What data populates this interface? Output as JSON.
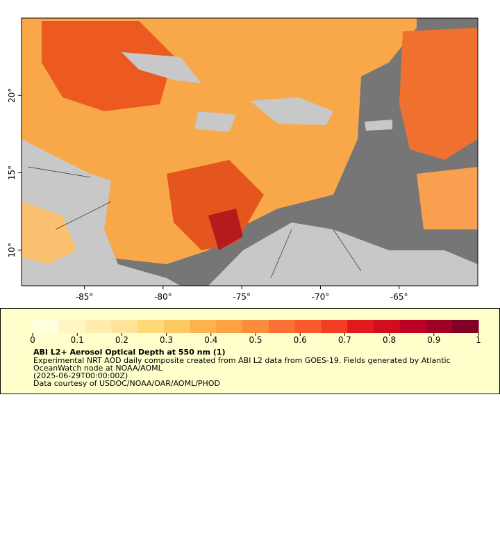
{
  "map": {
    "xlim": [
      -89,
      -60
    ],
    "ylim": [
      7.7,
      25
    ],
    "xticks": [
      {
        "value": -85,
        "label": "-85°"
      },
      {
        "value": -80,
        "label": "-80°"
      },
      {
        "value": -75,
        "label": "-75°"
      },
      {
        "value": -70,
        "label": "-70°"
      },
      {
        "value": -65,
        "label": "-65°"
      }
    ],
    "yticks": [
      {
        "value": 10,
        "label": "10°"
      },
      {
        "value": 15,
        "label": "15°"
      },
      {
        "value": 20,
        "label": "20°"
      }
    ]
  },
  "legend": {
    "title": "ABI L2+ Aerosol Optical Depth at 550 nm (1)",
    "lines": [
      "Experimental NRT AOD daily composite created from ABI L2 data from GOES-19. Fields generated by Atlantic",
      "OceanWatch node at NOAA/AOML",
      "(2025-06-29T00:00:00Z)",
      "Data courtesy of USDOC/NOAA/OAR/AOML/PHOD"
    ],
    "colorbar": {
      "lim": [
        0,
        1
      ],
      "ticks": [
        0,
        0.1,
        0.2,
        0.3,
        0.4,
        0.5,
        0.6,
        0.7,
        0.8,
        0.9,
        1
      ],
      "colors": [
        "#ffffe0",
        "#fff6c4",
        "#ffedab",
        "#fee39a",
        "#fed976",
        "#fec862",
        "#feb24c",
        "#fea044",
        "#fd8d3c",
        "#fc7234",
        "#fc5a2c",
        "#f43d25",
        "#e31a1c",
        "#d10e20",
        "#bd0026",
        "#a10026",
        "#800026"
      ]
    }
  }
}
